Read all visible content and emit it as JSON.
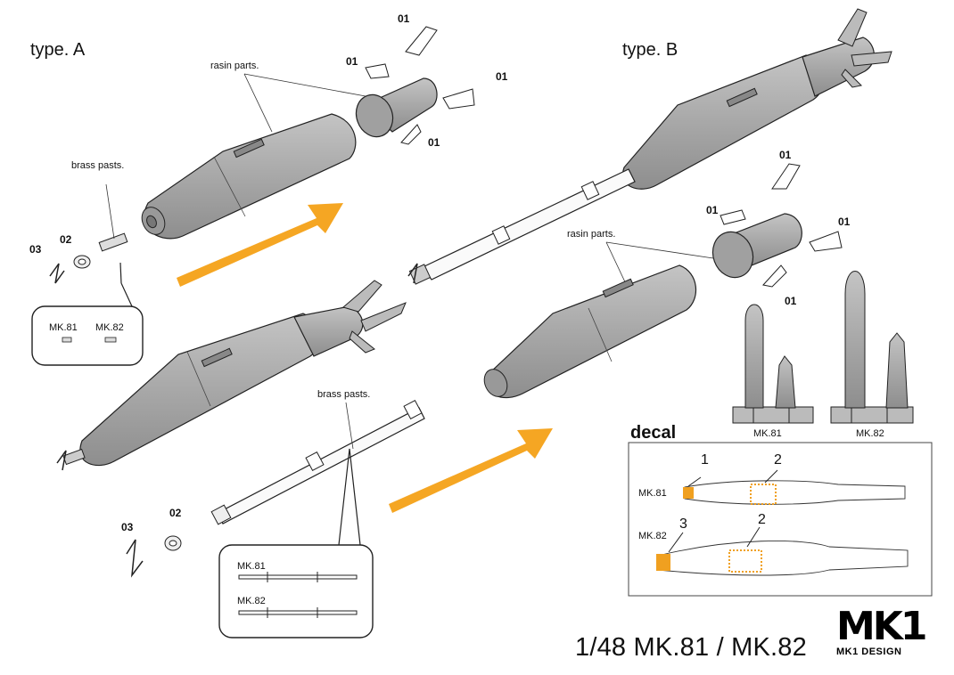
{
  "headings": {
    "type_a": "type. A",
    "type_b": "type. B",
    "decal": "decal"
  },
  "callouts": {
    "resin_a": "rasin parts.",
    "resin_b": "rasin parts.",
    "brass_a": "brass pasts.",
    "brass_b": "brass pasts."
  },
  "part_numbers": {
    "p01": "01",
    "p02": "02",
    "p03": "03"
  },
  "variants": {
    "mk81": "MK.81",
    "mk82": "MK.82"
  },
  "decal_numbers": [
    "1",
    "2",
    "3",
    "2"
  ],
  "footer": {
    "title": "1/48 MK.81 / MK.82",
    "logo": "MK1",
    "logo_sub": "MK1 DESIGN"
  },
  "colors": {
    "bomb_gray": "#a9a9a9",
    "arrow_orange": "#f5a623",
    "decal_orange": "#f0a020",
    "outline": "#222222"
  }
}
